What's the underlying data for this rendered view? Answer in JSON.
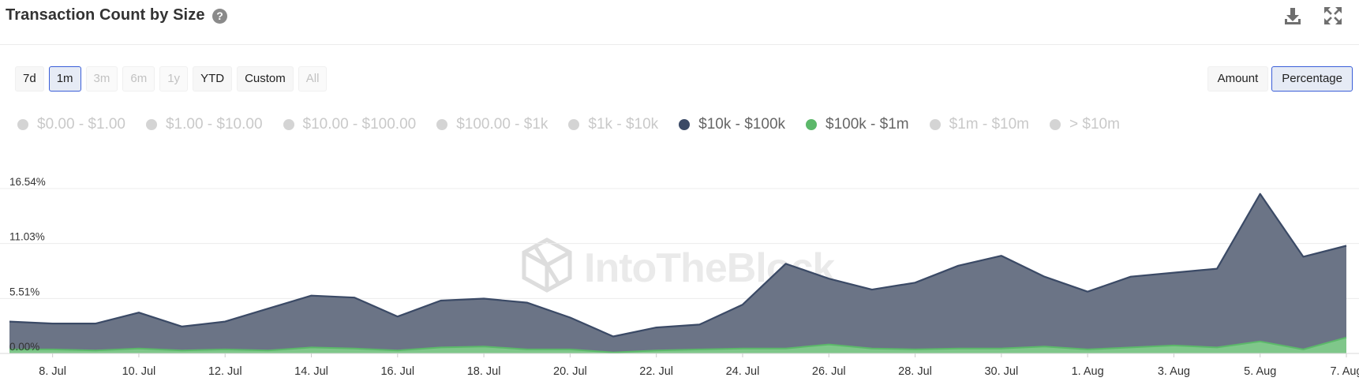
{
  "header": {
    "title": "Transaction Count by Size",
    "help_icon": "question-circle-icon",
    "download_icon": "download-icon",
    "fullscreen_icon": "fullscreen-icon"
  },
  "range_buttons": [
    {
      "label": "7d",
      "state": "normal"
    },
    {
      "label": "1m",
      "state": "active"
    },
    {
      "label": "3m",
      "state": "disabled"
    },
    {
      "label": "6m",
      "state": "disabled"
    },
    {
      "label": "1y",
      "state": "disabled"
    },
    {
      "label": "YTD",
      "state": "normal"
    },
    {
      "label": "Custom",
      "state": "normal"
    },
    {
      "label": "All",
      "state": "disabled"
    }
  ],
  "mode_buttons": [
    {
      "label": "Amount",
      "state": "normal"
    },
    {
      "label": "Percentage",
      "state": "active"
    }
  ],
  "watermark": "IntoTheBlock",
  "colors": {
    "series_10k_100k": "#3b4a66",
    "series_100k_1m": "#5cb86a",
    "legend_inactive": "#d4d4d4",
    "accent": "#3a5ed8"
  },
  "chart_data": {
    "type": "area",
    "stacked": true,
    "title": "Transaction Count by Size",
    "x": [
      "7. Jul",
      "8. Jul",
      "9. Jul",
      "10. Jul",
      "11. Jul",
      "12. Jul",
      "13. Jul",
      "14. Jul",
      "15. Jul",
      "16. Jul",
      "17. Jul",
      "18. Jul",
      "19. Jul",
      "20. Jul",
      "21. Jul",
      "22. Jul",
      "23. Jul",
      "24. Jul",
      "25. Jul",
      "26. Jul",
      "27. Jul",
      "28. Jul",
      "29. Jul",
      "30. Jul",
      "31. Jul",
      "1. Aug",
      "2. Aug",
      "3. Aug",
      "4. Aug",
      "5. Aug",
      "6. Aug",
      "7. Aug"
    ],
    "x_tick_labels": [
      "8. Jul",
      "10. Jul",
      "12. Jul",
      "14. Jul",
      "16. Jul",
      "18. Jul",
      "20. Jul",
      "22. Jul",
      "24. Jul",
      "26. Jul",
      "28. Jul",
      "30. Jul",
      "1. Aug",
      "3. Aug",
      "5. Aug",
      "7. Aug"
    ],
    "y_tick_labels": [
      "0.00%",
      "5.51%",
      "11.03%",
      "16.54%"
    ],
    "ylim": [
      0,
      16.54
    ],
    "legend": [
      {
        "name": "$0.00 - $1.00",
        "active": false
      },
      {
        "name": "$1.00 - $10.00",
        "active": false
      },
      {
        "name": "$10.00 - $100.00",
        "active": false
      },
      {
        "name": "$100.00 - $1k",
        "active": false
      },
      {
        "name": "$1k - $10k",
        "active": false
      },
      {
        "name": "$10k - $100k",
        "active": true,
        "color": "#3b4a66"
      },
      {
        "name": "$100k - $1m",
        "active": true,
        "color": "#5cb86a"
      },
      {
        "name": "$1m - $10m",
        "active": false
      },
      {
        "name": "> $10m",
        "active": false
      }
    ],
    "legend_placement": "top-left",
    "grid": true,
    "series": [
      {
        "name": "$100k - $1m",
        "color": "#5cb86a",
        "values": [
          0.4,
          0.4,
          0.3,
          0.5,
          0.3,
          0.4,
          0.3,
          0.6,
          0.5,
          0.3,
          0.6,
          0.7,
          0.4,
          0.4,
          0.1,
          0.3,
          0.4,
          0.5,
          0.5,
          0.9,
          0.5,
          0.4,
          0.5,
          0.5,
          0.7,
          0.4,
          0.6,
          0.8,
          0.6,
          1.2,
          0.4,
          1.6
        ]
      },
      {
        "name": "$10k - $100k",
        "color": "#3b4a66",
        "values": [
          2.8,
          2.6,
          2.7,
          3.6,
          2.4,
          2.8,
          4.2,
          5.2,
          5.1,
          3.4,
          4.7,
          4.8,
          4.7,
          3.2,
          1.6,
          2.3,
          2.5,
          4.4,
          8.5,
          6.6,
          5.9,
          6.7,
          8.3,
          9.3,
          7.0,
          5.8,
          7.1,
          7.3,
          7.9,
          14.8,
          9.3,
          9.2
        ]
      }
    ]
  }
}
